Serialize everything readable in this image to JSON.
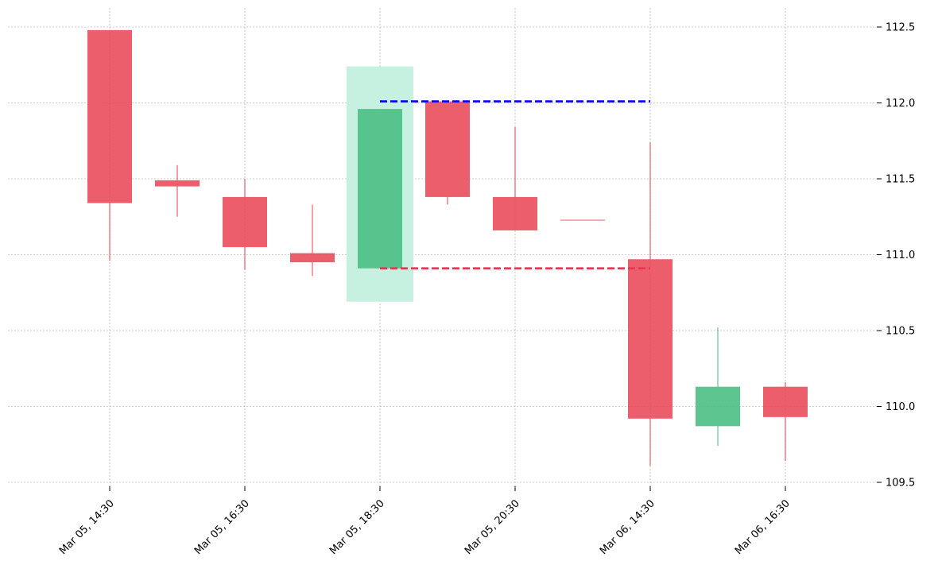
{
  "chart_data": {
    "type": "candlestick",
    "title": "",
    "xlabel": "",
    "ylabel": "",
    "ylim": [
      109.47,
      112.57
    ],
    "y_ticks": [
      "109.5",
      "110.0",
      "110.5",
      "111.0",
      "111.5",
      "112.0",
      "112.5"
    ],
    "x_tick_labels": [
      {
        "index": 0,
        "label": "Mar 05, 14:30"
      },
      {
        "index": 2,
        "label": "Mar 05, 16:30"
      },
      {
        "index": 4,
        "label": "Mar 05, 18:30"
      },
      {
        "index": 6,
        "label": "Mar 05, 20:30"
      },
      {
        "index": 8,
        "label": "Mar 06, 14:30"
      },
      {
        "index": 10,
        "label": "Mar 06, 16:30"
      }
    ],
    "candles": [
      {
        "open": 112.48,
        "high": 112.48,
        "low": 110.96,
        "close": 111.34
      },
      {
        "open": 111.49,
        "high": 111.59,
        "low": 111.25,
        "close": 111.45
      },
      {
        "open": 111.38,
        "high": 111.5,
        "low": 110.9,
        "close": 111.05
      },
      {
        "open": 111.01,
        "high": 111.33,
        "low": 110.86,
        "close": 110.95
      },
      {
        "open": 110.91,
        "high": 111.96,
        "low": 110.91,
        "close": 111.96
      },
      {
        "open": 112.01,
        "high": 112.01,
        "low": 111.33,
        "close": 111.38
      },
      {
        "open": 111.38,
        "high": 111.84,
        "low": 111.16,
        "close": 111.16
      },
      {
        "open": 111.23,
        "high": 111.23,
        "low": 111.23,
        "close": 111.23
      },
      {
        "open": 110.97,
        "high": 111.74,
        "low": 109.61,
        "close": 109.92
      },
      {
        "open": 109.87,
        "high": 110.52,
        "low": 109.74,
        "close": 110.13
      },
      {
        "open": 110.13,
        "high": 110.16,
        "low": 109.64,
        "close": 109.93
      }
    ],
    "highlight": {
      "index": 4,
      "low": 110.69,
      "high": 112.24
    },
    "lines": [
      {
        "y": 112.01,
        "from_index": 4,
        "to_index": 8,
        "color": "#0000ff",
        "style": "dashed"
      },
      {
        "y": 110.91,
        "from_index": 4,
        "to_index": 8,
        "color": "#e8364f",
        "style": "dashed"
      }
    ],
    "colors": {
      "up": "#4cbf85",
      "down": "#eb4d5c",
      "highlight": "#c6f0df",
      "grid": "#a0a0a0"
    },
    "grid": true
  }
}
